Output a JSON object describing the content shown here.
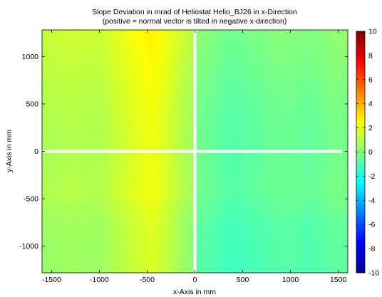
{
  "chart_data": {
    "type": "heatmap",
    "title": "Slope Deviation in mrad of Heliostat Helio_BJ26 in x-Direction",
    "subtitle": "(positive = normal vector is tilted in negative x-direction)",
    "xlabel": "x-Axis in mm",
    "ylabel": "y-Axis in mm",
    "xlim": [
      -1600,
      1600
    ],
    "ylim": [
      -1280,
      1280
    ],
    "x_ticks": [
      -1500,
      -1000,
      -500,
      0,
      500,
      1000,
      1500
    ],
    "y_ticks": [
      1000,
      500,
      0,
      -500,
      -1000
    ],
    "x_tick_labels": [
      "-1500",
      "-1000",
      "-500",
      "0",
      "500",
      "1000",
      "1500"
    ],
    "y_tick_labels": [
      "1000",
      "500",
      "0",
      "-500",
      "-1000"
    ],
    "colorbar": {
      "colormap": "jet",
      "range": [
        -10,
        10
      ],
      "ticks": [
        10,
        8,
        6,
        4,
        2,
        0,
        -2,
        -4,
        -6,
        -8,
        -10
      ],
      "tick_labels": [
        "10",
        "8",
        "6",
        "4",
        "2",
        "0",
        "-2",
        "-4",
        "-6",
        "-8",
        "-10"
      ]
    },
    "gaps": {
      "vertical_x": 0,
      "horizontal_y": 0,
      "color": "#ffffff"
    },
    "x_profile_mrad": {
      "x": [
        -1600,
        -1300,
        -1000,
        -800,
        -600,
        -450,
        -300,
        -150,
        -20,
        20,
        200,
        400,
        600,
        800,
        1000,
        1200,
        1400,
        1600
      ],
      "values": [
        0.8,
        1.0,
        0.9,
        1.4,
        1.9,
        2.2,
        1.7,
        1.0,
        0.6,
        -0.3,
        -0.6,
        -0.9,
        -0.7,
        -0.5,
        -0.4,
        -0.6,
        -0.3,
        -0.2
      ]
    },
    "y_profile_mrad": {
      "y": [
        -1280,
        -800,
        -400,
        0,
        400,
        800,
        1280
      ],
      "values": [
        -0.4,
        -0.3,
        0.1,
        0.0,
        0.1,
        0.3,
        0.6
      ]
    }
  }
}
